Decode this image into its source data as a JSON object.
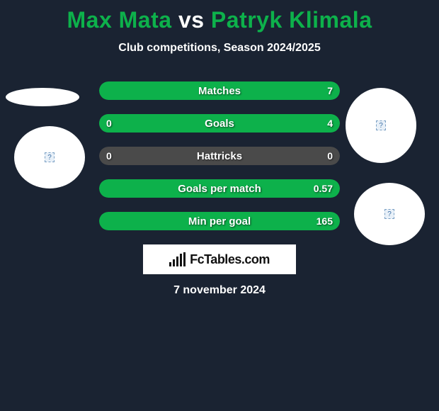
{
  "colors": {
    "page_bg": "#1a2332",
    "accent_green": "#0db14b",
    "white": "#ffffff",
    "bar_fill": "#0db14b",
    "bar_empty": "#4a4a4a"
  },
  "title": {
    "player1": "Max Mata",
    "vs": "vs",
    "player2": "Patryk Klimala"
  },
  "subtitle": "Club competitions, Season 2024/2025",
  "bars": [
    {
      "label": "Matches",
      "left_value": "",
      "right_value": "7",
      "left_pct": 0,
      "right_pct": 100,
      "bg_color": "#0db14b",
      "fill_color": "#0db14b"
    },
    {
      "label": "Goals",
      "left_value": "0",
      "right_value": "4",
      "left_pct": 0,
      "right_pct": 100,
      "bg_color": "#4a4a4a",
      "fill_color": "#0db14b"
    },
    {
      "label": "Hattricks",
      "left_value": "0",
      "right_value": "0",
      "left_pct": 0,
      "right_pct": 0,
      "bg_color": "#4a4a4a",
      "fill_color": "#0db14b"
    },
    {
      "label": "Goals per match",
      "left_value": "",
      "right_value": "0.57",
      "left_pct": 0,
      "right_pct": 100,
      "bg_color": "#0db14b",
      "fill_color": "#0db14b"
    },
    {
      "label": "Min per goal",
      "left_value": "",
      "right_value": "165",
      "left_pct": 0,
      "right_pct": 100,
      "bg_color": "#0db14b",
      "fill_color": "#0db14b"
    }
  ],
  "logo": {
    "text": "FcTables.com",
    "bar_heights": [
      6,
      10,
      14,
      18,
      20
    ]
  },
  "date": "7 november 2024",
  "placeholder_icon": "?"
}
